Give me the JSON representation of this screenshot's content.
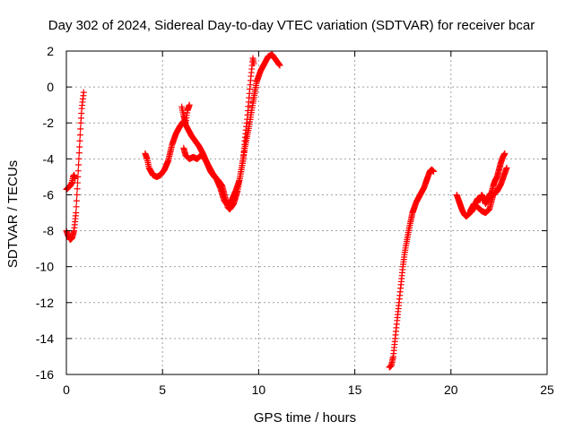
{
  "chart_data": {
    "type": "scatter",
    "title": "Day 302 of 2024, Sidereal Day-to-day VTEC variation (SDTVAR) for receiver bcar",
    "xlabel": "GPS time / hours",
    "ylabel": "SDTVAR / TECUs",
    "xlim": [
      0,
      25
    ],
    "ylim": [
      -16,
      2
    ],
    "xticks": [
      0,
      5,
      10,
      15,
      20,
      25
    ],
    "yticks": [
      -16,
      -14,
      -12,
      -10,
      -8,
      -6,
      -4,
      -2,
      0,
      2
    ],
    "grid": true,
    "marker": "plus",
    "color": "#ff0000",
    "series": [
      {
        "segments": [
          [
            [
              0.0,
              -5.7
            ],
            [
              0.1,
              -5.6
            ],
            [
              0.2,
              -5.5
            ],
            [
              0.3,
              -5.3
            ],
            [
              0.35,
              -5.0
            ],
            [
              0.4,
              -4.9
            ],
            [
              0.45,
              -5.1
            ]
          ],
          [
            [
              0.0,
              -8.0
            ],
            [
              0.1,
              -8.3
            ],
            [
              0.2,
              -8.5
            ],
            [
              0.3,
              -8.4
            ],
            [
              0.4,
              -8.0
            ],
            [
              0.45,
              -7.5
            ],
            [
              0.5,
              -7.0
            ],
            [
              0.55,
              -6.0
            ],
            [
              0.6,
              -5.0
            ],
            [
              0.65,
              -4.0
            ],
            [
              0.7,
              -3.0
            ],
            [
              0.75,
              -2.0
            ],
            [
              0.8,
              -1.2
            ],
            [
              0.9,
              -0.3
            ]
          ],
          [
            [
              4.1,
              -3.7
            ],
            [
              4.2,
              -4.0
            ],
            [
              4.3,
              -4.5
            ],
            [
              4.5,
              -4.9
            ],
            [
              4.7,
              -5.0
            ],
            [
              4.9,
              -4.9
            ],
            [
              5.1,
              -4.6
            ],
            [
              5.3,
              -4.1
            ],
            [
              5.5,
              -3.2
            ],
            [
              5.7,
              -2.6
            ],
            [
              5.9,
              -2.2
            ],
            [
              6.1,
              -1.9
            ],
            [
              6.3,
              -2.3
            ],
            [
              6.5,
              -2.7
            ],
            [
              6.7,
              -3.0
            ],
            [
              6.9,
              -3.3
            ],
            [
              7.1,
              -3.7
            ],
            [
              7.3,
              -4.2
            ],
            [
              7.5,
              -4.7
            ],
            [
              7.7,
              -5.0
            ],
            [
              7.9,
              -5.2
            ],
            [
              8.1,
              -5.5
            ],
            [
              8.3,
              -6.3
            ],
            [
              8.4,
              -6.7
            ],
            [
              8.5,
              -6.8
            ],
            [
              8.7,
              -6.5
            ],
            [
              8.9,
              -5.8
            ],
            [
              9.1,
              -4.6
            ],
            [
              9.3,
              -3.3
            ],
            [
              9.5,
              -2.2
            ],
            [
              9.7,
              -0.9
            ],
            [
              9.9,
              0.3
            ],
            [
              10.1,
              0.9
            ],
            [
              10.3,
              1.3
            ],
            [
              10.5,
              1.7
            ],
            [
              10.7,
              1.8
            ],
            [
              10.9,
              1.5
            ],
            [
              11.1,
              1.2
            ]
          ],
          [
            [
              6.0,
              -1.1
            ],
            [
              6.1,
              -1.6
            ],
            [
              6.2,
              -2.0
            ],
            [
              6.3,
              -1.3
            ],
            [
              6.4,
              -1.0
            ]
          ],
          [
            [
              6.1,
              -3.4
            ],
            [
              6.2,
              -3.8
            ],
            [
              6.4,
              -4.0
            ],
            [
              6.6,
              -3.9
            ],
            [
              6.8,
              -4.0
            ],
            [
              7.0,
              -3.8
            ],
            [
              7.2,
              -4.0
            ],
            [
              7.4,
              -4.4
            ],
            [
              7.6,
              -4.8
            ],
            [
              7.8,
              -5.1
            ],
            [
              8.0,
              -5.6
            ],
            [
              8.2,
              -6.3
            ],
            [
              8.4,
              -6.6
            ],
            [
              8.6,
              -6.3
            ],
            [
              8.8,
              -5.8
            ],
            [
              9.0,
              -5.2
            ],
            [
              9.2,
              -4.0
            ],
            [
              9.3,
              -2.8
            ],
            [
              9.4,
              -1.8
            ],
            [
              9.5,
              -0.6
            ],
            [
              9.6,
              0.6
            ],
            [
              9.7,
              1.6
            ],
            [
              9.75,
              1.3
            ]
          ],
          [
            [
              16.8,
              -15.6
            ],
            [
              16.9,
              -15.5
            ],
            [
              17.0,
              -15.0
            ],
            [
              17.1,
              -14.0
            ],
            [
              17.2,
              -13.0
            ],
            [
              17.3,
              -12.0
            ],
            [
              17.4,
              -11.0
            ],
            [
              17.5,
              -10.0
            ],
            [
              17.6,
              -9.2
            ],
            [
              17.7,
              -8.6
            ],
            [
              17.8,
              -8.0
            ],
            [
              17.9,
              -7.5
            ],
            [
              18.0,
              -7.0
            ],
            [
              18.1,
              -6.7
            ],
            [
              18.2,
              -6.4
            ],
            [
              18.3,
              -6.2
            ],
            [
              18.4,
              -6.0
            ],
            [
              18.5,
              -5.8
            ],
            [
              18.6,
              -5.6
            ],
            [
              18.7,
              -5.3
            ],
            [
              18.8,
              -5.0
            ],
            [
              18.9,
              -4.7
            ],
            [
              19.0,
              -4.6
            ],
            [
              19.1,
              -4.7
            ]
          ],
          [
            [
              20.3,
              -6.0
            ],
            [
              20.4,
              -6.3
            ],
            [
              20.5,
              -6.6
            ],
            [
              20.6,
              -6.9
            ],
            [
              20.7,
              -7.1
            ],
            [
              20.8,
              -7.2
            ],
            [
              20.9,
              -7.1
            ],
            [
              21.0,
              -7.0
            ],
            [
              21.1,
              -6.9
            ],
            [
              21.2,
              -6.7
            ],
            [
              21.3,
              -6.4
            ],
            [
              21.4,
              -6.2
            ],
            [
              21.5,
              -6.3
            ],
            [
              21.6,
              -6.0
            ],
            [
              21.7,
              -6.2
            ],
            [
              21.8,
              -6.5
            ],
            [
              21.9,
              -6.3
            ],
            [
              22.0,
              -6.0
            ],
            [
              22.1,
              -5.9
            ],
            [
              22.2,
              -5.5
            ],
            [
              22.3,
              -5.2
            ],
            [
              22.4,
              -5.0
            ],
            [
              22.5,
              -4.6
            ],
            [
              22.6,
              -4.2
            ],
            [
              22.7,
              -3.9
            ],
            [
              22.8,
              -3.7
            ]
          ],
          [
            [
              21.0,
              -6.9
            ],
            [
              21.2,
              -6.5
            ],
            [
              21.4,
              -6.7
            ],
            [
              21.6,
              -6.9
            ],
            [
              21.8,
              -7.0
            ],
            [
              22.0,
              -6.8
            ],
            [
              22.2,
              -6.0
            ],
            [
              22.4,
              -5.8
            ],
            [
              22.6,
              -5.4
            ],
            [
              22.8,
              -4.8
            ],
            [
              22.9,
              -4.5
            ]
          ]
        ]
      }
    ]
  }
}
